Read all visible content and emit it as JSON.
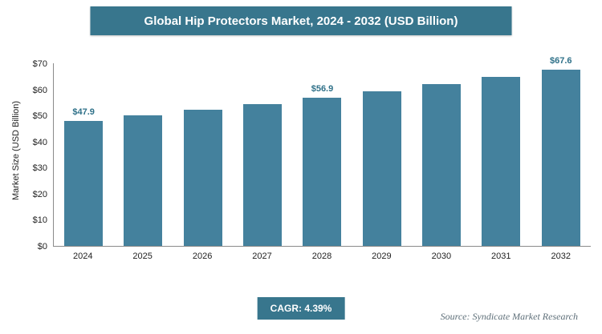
{
  "title": "Global Hip Protectors Market, 2024 - 2032 (USD Billion)",
  "chart_data": {
    "type": "bar",
    "title": "Global Hip Protectors Market, 2024 - 2032 (USD Billion)",
    "categories": [
      "2024",
      "2025",
      "2026",
      "2027",
      "2028",
      "2029",
      "2030",
      "2031",
      "2032"
    ],
    "values": [
      47.9,
      50.0,
      52.2,
      54.5,
      56.9,
      59.4,
      62.0,
      64.7,
      67.6
    ],
    "data_labels": [
      "$47.9",
      "",
      "",
      "",
      "$56.9",
      "",
      "",
      "",
      "$67.6"
    ],
    "xlabel": "",
    "ylabel": "Market Size (USD Billion)",
    "ylim": [
      0,
      70
    ],
    "ytick_step": 10,
    "ytick_labels": [
      "$0",
      "$10",
      "$20",
      "$30",
      "$40",
      "$50",
      "$60",
      "$70"
    ],
    "grid": "off",
    "legend": "none"
  },
  "colors": {
    "banner_bg": "#38768d",
    "bar_fill": "#44819d",
    "badge_bg": "#38768d",
    "value_label": "#2f7189"
  },
  "footer": {
    "cagr_label": "CAGR: 4.39%",
    "source": "Source: Syndicate Market Research"
  }
}
